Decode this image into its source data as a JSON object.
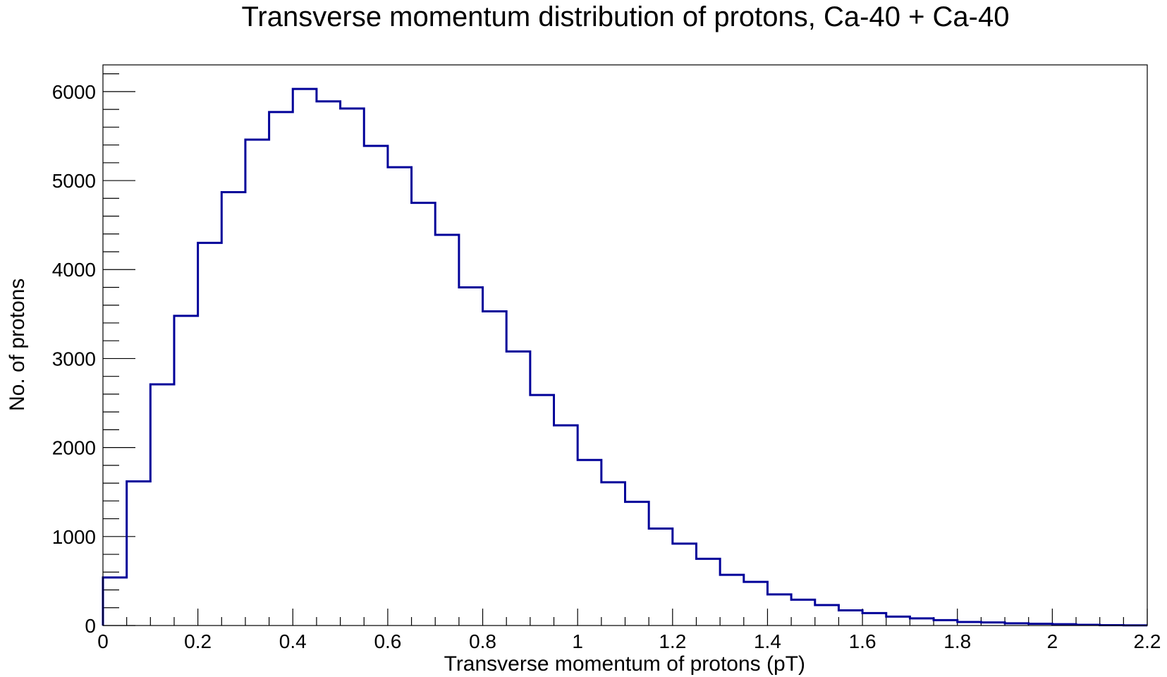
{
  "chart_data": {
    "type": "histogram",
    "title": "Transverse momentum distribution of protons, Ca-40 + Ca-40",
    "xlabel": "Transverse momentum of protons (pT)",
    "ylabel": "No. of protons",
    "xlim": [
      0,
      2.2
    ],
    "ylim": [
      0,
      6300
    ],
    "bin_width": 0.05,
    "x_ticks": [
      "0",
      "0.2",
      "0.4",
      "0.6",
      "0.8",
      "1",
      "1.2",
      "1.4",
      "1.6",
      "1.8",
      "2",
      "2.2"
    ],
    "y_ticks": [
      "0",
      "1000",
      "2000",
      "3000",
      "4000",
      "5000",
      "6000"
    ],
    "bin_edges_start": [
      0,
      0.05,
      0.1,
      0.15,
      0.2,
      0.25,
      0.3,
      0.35,
      0.4,
      0.45,
      0.5,
      0.55,
      0.6,
      0.65,
      0.7,
      0.75,
      0.8,
      0.85,
      0.9,
      0.95,
      1.0,
      1.05,
      1.1,
      1.15,
      1.2,
      1.25,
      1.3,
      1.35,
      1.4,
      1.45,
      1.5,
      1.55,
      1.6,
      1.65,
      1.7,
      1.75,
      1.8,
      1.85,
      1.9,
      1.95,
      2.0,
      2.05,
      2.1,
      2.15
    ],
    "values": [
      540,
      1620,
      2710,
      3480,
      4300,
      4870,
      5460,
      5770,
      6030,
      5890,
      5810,
      5390,
      5150,
      4750,
      4390,
      3800,
      3530,
      3080,
      2590,
      2250,
      1860,
      1610,
      1390,
      1090,
      920,
      750,
      570,
      490,
      350,
      290,
      230,
      170,
      140,
      100,
      80,
      60,
      40,
      35,
      25,
      20,
      15,
      8,
      4,
      2
    ],
    "line_color": "#000099",
    "grid": false,
    "legend": "none"
  }
}
